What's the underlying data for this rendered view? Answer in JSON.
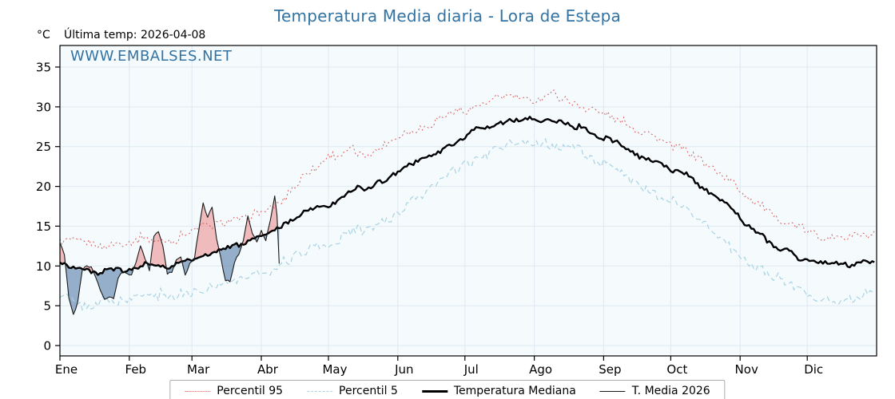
{
  "chart_data": {
    "type": "line",
    "title": "Temperatura Media diaria - Lora de Estepa",
    "title_color": "#3273a3",
    "unit_label": "°C",
    "last_temp_label": "Última temp: 2026-04-08",
    "watermark": "WWW.EMBALSES.NET",
    "watermark_color": "#3273a3",
    "months": [
      "Ene",
      "Feb",
      "Mar",
      "Abr",
      "May",
      "Jun",
      "Jul",
      "Ago",
      "Sep",
      "Oct",
      "Nov",
      "Dic"
    ],
    "month_start_days": [
      0,
      31,
      59,
      90,
      120,
      151,
      181,
      212,
      243,
      273,
      304,
      334
    ],
    "yticks": [
      0,
      5,
      10,
      15,
      20,
      25,
      30,
      35
    ],
    "ylim": [
      -1.3,
      37.7
    ],
    "xlim_days": [
      0,
      365
    ],
    "grid": true,
    "legend_position": "bottom",
    "plot_bg": "#f5fafd",
    "grid_color": "#dde9f1",
    "fill_above_color": "rgba(235,110,110,0.45)",
    "fill_below_color": "rgba(85,125,170,0.6)",
    "control_days": [
      0,
      10,
      20,
      30,
      40,
      50,
      60,
      70,
      80,
      90,
      100,
      110,
      120,
      130,
      140,
      150,
      160,
      170,
      180,
      190,
      200,
      210,
      220,
      230,
      240,
      250,
      260,
      270,
      280,
      290,
      300,
      310,
      320,
      330,
      340,
      350,
      360
    ],
    "series": [
      {
        "name": "Percentil 95",
        "color": "#d95f5f",
        "style": "dotted",
        "width": 1,
        "values": [
          13.2,
          12.8,
          12.6,
          13.2,
          13.6,
          13.2,
          14.6,
          15.4,
          16.0,
          16.6,
          18.5,
          21.5,
          23.5,
          24.5,
          24.0,
          26.2,
          27.2,
          28.6,
          29.6,
          30.6,
          31.3,
          31.0,
          31.6,
          30.6,
          29.6,
          28.2,
          27.0,
          25.6,
          24.6,
          22.6,
          20.5,
          18.2,
          16.2,
          14.6,
          13.9,
          13.5,
          14.0
        ]
      },
      {
        "name": "Percentil 5",
        "color": "#a9d3e2",
        "style": "dashed",
        "width": 1.2,
        "values": [
          6.8,
          4.8,
          5.6,
          5.8,
          6.6,
          6.2,
          6.6,
          7.4,
          8.4,
          9.0,
          10.4,
          12.2,
          12.4,
          14.4,
          15.0,
          16.6,
          18.6,
          21.0,
          22.6,
          24.0,
          25.0,
          25.8,
          25.2,
          24.6,
          23.2,
          21.6,
          20.0,
          18.4,
          17.0,
          14.6,
          12.0,
          10.0,
          8.6,
          7.0,
          6.0,
          5.2,
          6.4
        ]
      },
      {
        "name": "Temperatura Mediana",
        "color": "#000000",
        "style": "solid",
        "width": 2.4,
        "values": [
          10.3,
          9.5,
          9.2,
          9.6,
          10.2,
          10.0,
          11.0,
          11.8,
          12.8,
          13.6,
          15.2,
          16.8,
          17.6,
          19.6,
          20.0,
          21.6,
          23.0,
          24.6,
          26.0,
          27.6,
          28.3,
          28.6,
          28.1,
          27.6,
          26.6,
          25.2,
          23.6,
          22.6,
          21.4,
          19.4,
          17.0,
          14.4,
          12.6,
          11.0,
          10.4,
          10.2,
          10.5
        ]
      },
      {
        "name": "T. Media 2026",
        "color": "#1a1a1a",
        "style": "solid",
        "width": 1.1,
        "days": [
          0,
          2,
          4,
          6,
          8,
          10,
          12,
          14,
          16,
          18,
          20,
          22,
          24,
          26,
          28,
          30,
          32,
          34,
          36,
          38,
          40,
          42,
          44,
          46,
          48,
          50,
          52,
          54,
          56,
          58,
          60,
          62,
          64,
          66,
          68,
          70,
          72,
          74,
          76,
          78,
          80,
          82,
          84,
          86,
          88,
          90,
          92,
          94,
          96,
          97,
          98
        ],
        "values": [
          13.0,
          11.5,
          6.0,
          3.8,
          5.5,
          9.5,
          10.0,
          9.8,
          8.5,
          7.0,
          5.8,
          6.2,
          6.0,
          8.5,
          9.3,
          9.0,
          8.8,
          10.5,
          12.5,
          11.0,
          9.5,
          13.8,
          14.2,
          12.5,
          9.0,
          9.2,
          10.8,
          11.2,
          8.8,
          10.2,
          10.8,
          14.5,
          17.8,
          16.2,
          17.5,
          13.5,
          10.8,
          8.2,
          8.0,
          10.5,
          11.5,
          13.2,
          16.2,
          14.0,
          13.0,
          14.5,
          13.2,
          15.8,
          18.8,
          16.5,
          10.4
        ]
      }
    ]
  }
}
